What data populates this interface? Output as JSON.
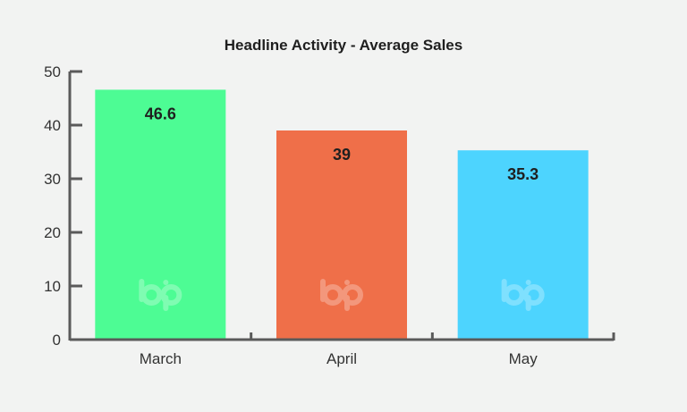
{
  "chart_data": {
    "type": "bar",
    "title": "Headline Activity - Average Sales",
    "xlabel": "",
    "ylabel": "",
    "categories": [
      "March",
      "April",
      "May"
    ],
    "values": [
      46.6,
      39,
      35.3
    ],
    "value_labels": [
      "46.6",
      "39",
      "35.3"
    ],
    "bar_colors": [
      "#4dfc94",
      "#ef6f49",
      "#4dd4fe"
    ],
    "ylim": [
      0,
      50
    ],
    "yticks": [
      0,
      10,
      20,
      30,
      40,
      50
    ],
    "ytick_labels": [
      "0",
      "10",
      "20",
      "30",
      "40",
      "50"
    ],
    "grid": false,
    "legend": "none",
    "watermark": "bp"
  },
  "colors": {
    "background": "#f2f3f2",
    "axis": "#5a5a5a",
    "text": "#1f1f1f"
  }
}
